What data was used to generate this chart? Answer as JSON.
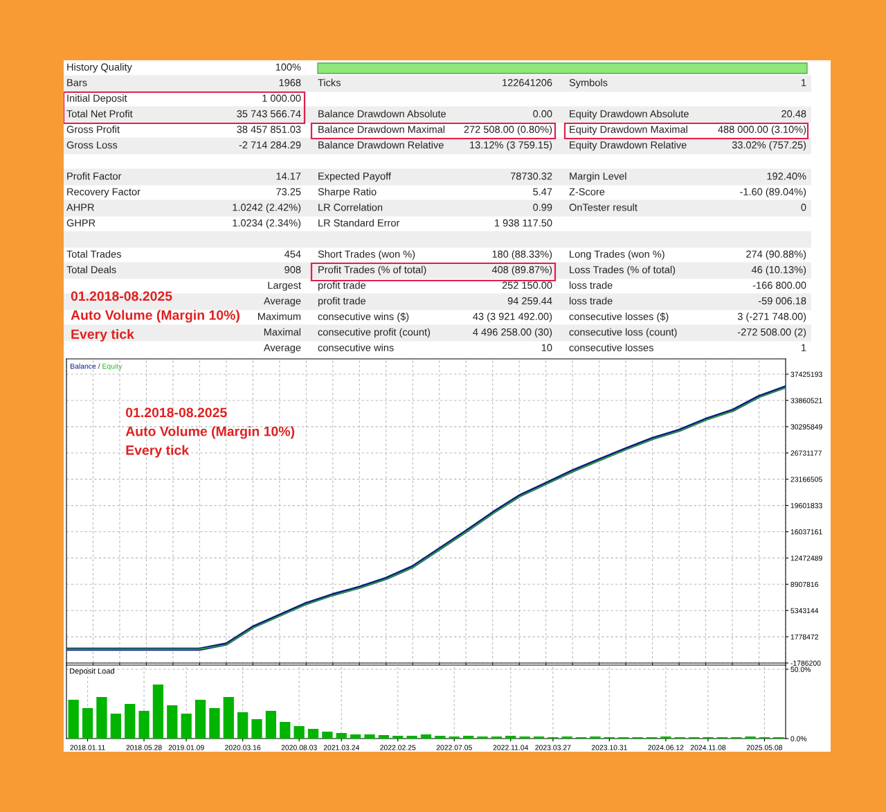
{
  "chart_data": [
    {
      "type": "other",
      "annotations": [
        "History Quality",
        "100%",
        null,
        null,
        null,
        null,
        "Bars",
        "1968",
        "Ticks",
        "122641206",
        "Symbols",
        "1",
        "Initial Deposit",
        "1 000.00",
        null,
        null,
        null,
        null,
        "Total Net Profit",
        "35 743 566.74",
        "Balance Drawdown Absolute",
        "0.00",
        "Equity Drawdown Absolute",
        "20.48",
        "Gross Profit",
        "38 457 851.03",
        "Balance Drawdown Maximal",
        "272 508.00 (0.80%)",
        "Equity Drawdown Maximal",
        "488 000.00 (3.10%)",
        "Gross Loss",
        "-2 714 284.29",
        "Balance Drawdown Relative",
        "13.12% (3 759.15)",
        "Equity Drawdown Relative",
        "33.02% (757.25)",
        null,
        null,
        null,
        null,
        null,
        null,
        "Profit Factor",
        "14.17",
        "Expected Payoff",
        "78730.32",
        "Margin Level",
        "192.40%",
        "Recovery Factor",
        "73.25",
        "Sharpe Ratio",
        "5.47",
        "Z-Score",
        "-1.60 (89.04%)",
        "AHPR",
        "1.0242 (2.42%)",
        "LR Correlation",
        "0.99",
        "OnTester result",
        "0",
        "GHPR",
        "1.0234 (2.34%)",
        "LR Standard Error",
        "1 938 117.50",
        null,
        null,
        null,
        null,
        null,
        null,
        null,
        null,
        "Total Trades",
        "454",
        "Short Trades (won %)",
        "180 (88.33%)",
        "Long Trades (won %)",
        "274 (90.88%)",
        "Total Deals",
        "908",
        "Profit Trades (% of total)",
        "408 (89.87%)",
        "Loss Trades (% of total)",
        "46 (10.13%)",
        null,
        "Largest",
        "profit trade",
        "252 150.00",
        "loss trade",
        "-166 800.00",
        null,
        "Average",
        "profit trade",
        "94 259.44",
        "loss trade",
        "-59 006.18",
        null,
        "Maximum",
        "consecutive wins ($)",
        "43 (3 921 492.00)",
        "consecutive losses ($)",
        "3 (-271 748.00)",
        null,
        "Maximal",
        "consecutive profit (count)",
        "4 496 258.00 (30)",
        "consecutive loss (count)",
        "-272 508.00 (2)",
        null,
        "Average",
        "consecutive wins",
        "10",
        "consecutive losses",
        "1",
        "01.2018-08.2025",
        "Auto Volume (Margin 10%)",
        "Every tick"
      ]
    },
    {
      "type": "line",
      "tick_labels": "y",
      "grid": true,
      "legend": "top left",
      "categories": [
        null,
        null,
        null,
        null,
        null,
        null,
        null,
        null,
        null,
        null,
        null,
        null,
        null,
        null,
        null,
        null,
        null,
        null,
        null,
        null,
        null,
        null,
        null,
        null,
        null,
        null,
        null,
        null
      ],
      "ylim": [
        -1786200,
        39500000
      ],
      "yticks": [
        -1786200,
        1778472,
        5343144,
        8907816,
        12472489,
        16037161,
        19601833,
        23166505,
        26731177,
        30295849,
        33860521,
        37425193
      ],
      "annotations": [
        "/",
        "01.2018-08.2025",
        "Auto Volume (Margin 10%)",
        "Every tick"
      ],
      "series": [
        {
          "name": "Balance",
          "color": "#0d1f80",
          "values": [
            100000,
            100000,
            100000,
            100000,
            100000,
            100000,
            800000,
            3100000,
            4700000,
            6300000,
            7500000,
            8500000,
            9700000,
            11300000,
            13700000,
            16100000,
            18600000,
            20900000,
            22600000,
            24300000,
            25800000,
            27300000,
            28700000,
            29800000,
            31300000,
            32500000,
            34400000,
            35700000
          ]
        },
        {
          "name": "Equity",
          "color": "#2eb82e",
          "values": [
            100000,
            100000,
            100000,
            100000,
            100000,
            100000,
            700000,
            3000000,
            4600000,
            6200000,
            7400000,
            8400000,
            9600000,
            11200000,
            13600000,
            16000000,
            18500000,
            20800000,
            22500000,
            24200000,
            25700000,
            27200000,
            28600000,
            29700000,
            31200000,
            32400000,
            34300000,
            35600000
          ]
        }
      ]
    },
    {
      "type": "bar",
      "title": "Deposit Load",
      "grid": true,
      "color": "#00b400",
      "categories": [
        null,
        "2018.01.11",
        null,
        null,
        null,
        "2018.05.28",
        null,
        null,
        "2019.01.09",
        null,
        null,
        null,
        "2020.03.16",
        null,
        null,
        null,
        "2020.08.03",
        null,
        null,
        "2021.03.24",
        null,
        null,
        null,
        "2022.02.25",
        null,
        null,
        null,
        "2022.07.05",
        null,
        null,
        null,
        "2022.11.04",
        null,
        null,
        "2023.03.27",
        null,
        null,
        null,
        "2023.10.31",
        null,
        null,
        null,
        "2024.06.12",
        null,
        null,
        "2024.11.08",
        null,
        null,
        null,
        "2025.05.08",
        null
      ],
      "ylim": [
        0,
        53
      ],
      "yticks": [
        {
          "value": 0,
          "label": "0.0%"
        },
        {
          "value": 50,
          "label": "50.0%"
        }
      ],
      "values": [
        28,
        22,
        30,
        18,
        25,
        20,
        39,
        24,
        18,
        28,
        22,
        30,
        19,
        14,
        20,
        12,
        9,
        7,
        5,
        4,
        3,
        3,
        2.5,
        2,
        2,
        3,
        2,
        1.5,
        2,
        1.5,
        1.5,
        2,
        1.5,
        1.5,
        1,
        1.5,
        1,
        1.5,
        1,
        1,
        1,
        1,
        1.5,
        1,
        1,
        1,
        1,
        1,
        1.5,
        1,
        1
      ]
    }
  ]
}
